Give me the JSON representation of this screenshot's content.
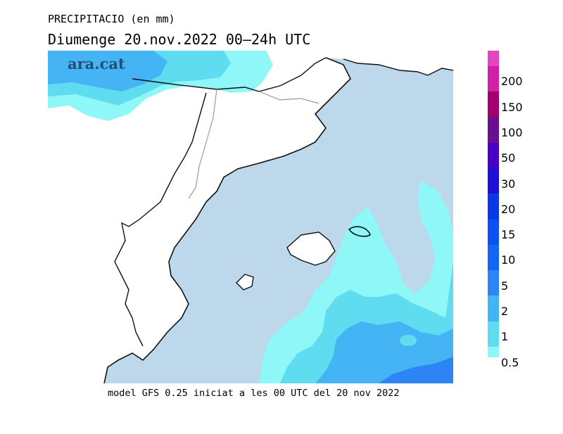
{
  "header": {
    "title": "PRECIPITACIO (en mm)",
    "subtitle": "Diumenge  20.nov.2022 00—24h UTC"
  },
  "footer": {
    "note": "model GFS 0.25 iniciat a les 00 UTC del 20 nov 2022"
  },
  "logo": {
    "text": "ara.cat"
  },
  "legend": {
    "unit": "mm",
    "items": [
      {
        "label": "200",
        "color": "#d41fa8"
      },
      {
        "label": "150",
        "color": "#a4006d"
      },
      {
        "label": "100",
        "color": "#6a0f93"
      },
      {
        "label": "50",
        "color": "#4a00c8"
      },
      {
        "label": "30",
        "color": "#1e0fd8"
      },
      {
        "label": "20",
        "color": "#0a38e8"
      },
      {
        "label": "15",
        "color": "#0a50f2"
      },
      {
        "label": "10",
        "color": "#1266f5"
      },
      {
        "label": "5",
        "color": "#2c84f5"
      },
      {
        "label": "2",
        "color": "#45b4f5"
      },
      {
        "label": "1",
        "color": "#5fdcf0"
      },
      {
        "label": "0.5",
        "color": "#8ff7f7"
      }
    ],
    "top_color": "#e545c0"
  },
  "map": {
    "sea_color": "#bdd8ea",
    "land_color": "#ffffff",
    "coast_color": "#111111",
    "border_color": "#9a9a9a"
  }
}
